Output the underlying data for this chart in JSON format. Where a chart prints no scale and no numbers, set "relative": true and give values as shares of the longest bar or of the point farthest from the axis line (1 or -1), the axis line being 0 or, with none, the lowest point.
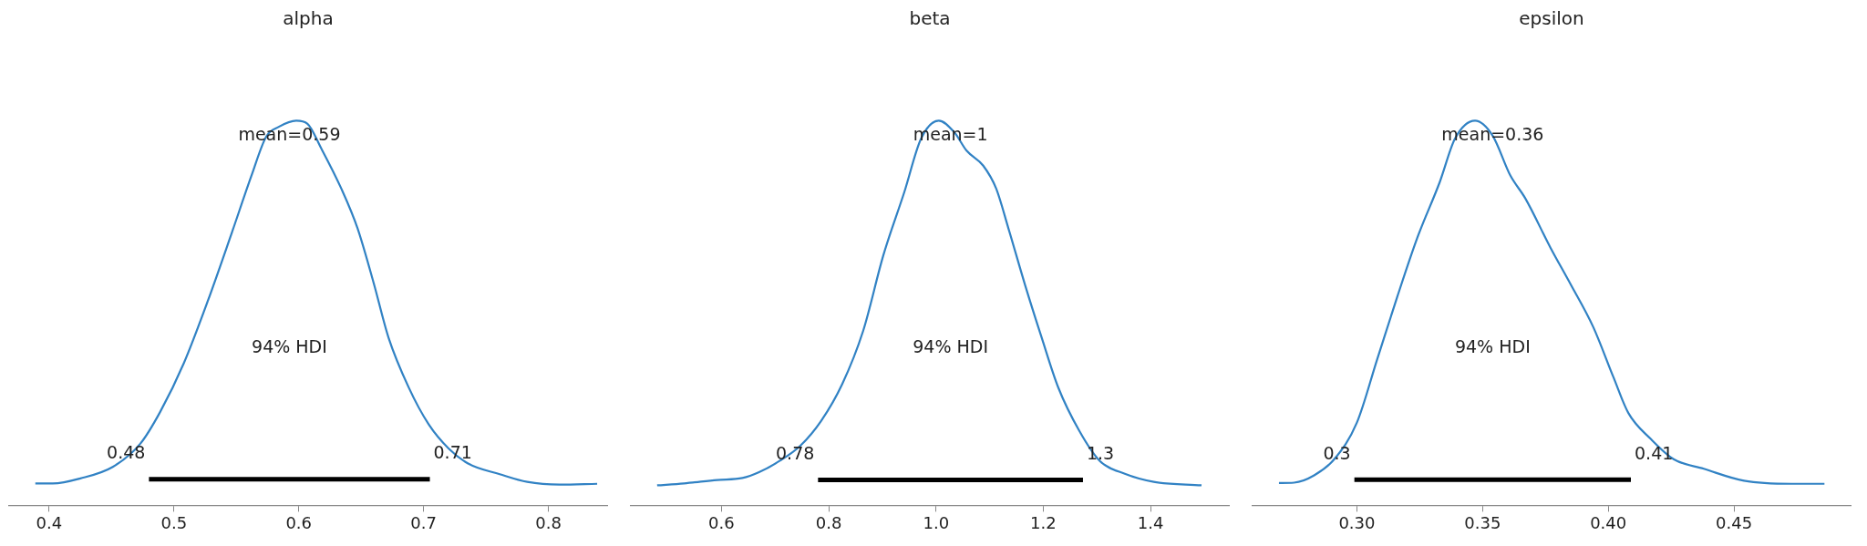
{
  "chart_data": [
    {
      "type": "line",
      "title": "alpha",
      "relative": true,
      "marker": "none",
      "line_style": "solid",
      "legend": false,
      "tick_labels": "x",
      "xlim": [
        0.368,
        0.847
      ],
      "xticks": [
        0.4,
        0.5,
        0.6,
        0.7,
        0.8
      ],
      "series": [
        {
          "color": "#3182c4",
          "x": [
            0.389,
            0.403,
            0.425,
            0.451,
            0.473,
            0.489,
            0.508,
            0.527,
            0.546,
            0.562,
            0.574,
            0.584,
            0.598,
            0.607,
            0.618,
            0.634,
            0.647,
            0.66,
            0.672,
            0.688,
            0.704,
            0.72,
            0.736,
            0.761,
            0.783,
            0.809,
            0.839
          ],
          "values": [
            0.057,
            0.057,
            0.07,
            0.1,
            0.16,
            0.243,
            0.37,
            0.53,
            0.705,
            0.856,
            0.959,
            0.984,
            1,
            0.992,
            0.928,
            0.824,
            0.721,
            0.578,
            0.435,
            0.307,
            0.211,
            0.148,
            0.108,
            0.081,
            0.061,
            0.054,
            0.056
          ]
        },
        {
          "color": "#000000",
          "x": [
            0.48,
            0.705
          ],
          "values": [
            0.068,
            0.068
          ]
        }
      ],
      "annotations": [
        "mean=0.59",
        "94% HDI",
        "0.48",
        "0.71"
      ]
    },
    {
      "type": "line",
      "title": "beta",
      "relative": true,
      "marker": "none",
      "line_style": "solid",
      "legend": false,
      "tick_labels": "x",
      "xlim": [
        0.431,
        1.546
      ],
      "xticks": [
        0.6,
        0.8,
        {
          "value": 1,
          "label": "1.0"
        },
        1.2,
        1.4
      ],
      "series": [
        {
          "color": "#3182c4",
          "x": [
            0.48,
            0.53,
            0.592,
            0.639,
            0.67,
            0.709,
            0.747,
            0.786,
            0.825,
            0.864,
            0.902,
            0.941,
            0.972,
            1.005,
            1.034,
            1.057,
            1.088,
            1.112,
            1.135,
            1.166,
            1.197,
            1.228,
            1.267,
            1.305,
            1.352,
            1.406,
            1.495
          ],
          "values": [
            0.052,
            0.057,
            0.066,
            0.071,
            0.086,
            0.116,
            0.155,
            0.22,
            0.315,
            0.453,
            0.651,
            0.815,
            0.953,
            1,
            0.97,
            0.922,
            0.883,
            0.824,
            0.72,
            0.573,
            0.436,
            0.306,
            0.194,
            0.116,
            0.082,
            0.061,
            0.052
          ]
        },
        {
          "color": "#000000",
          "x": [
            0.78,
            1.274
          ],
          "values": [
            0.066,
            0.066
          ]
        }
      ],
      "annotations": [
        "mean=1",
        "94% HDI",
        "0.78",
        "1.3"
      ]
    },
    {
      "type": "line",
      "title": "epsilon",
      "relative": true,
      "marker": "none",
      "line_style": "solid",
      "legend": false,
      "tick_labels": "x",
      "xlim": [
        0.2585,
        0.4964
      ],
      "xticks": [
        {
          "value": 0.3,
          "label": "0.30"
        },
        0.35,
        {
          "value": 0.4,
          "label": "0.40"
        },
        0.45
      ],
      "series": [
        {
          "color": "#3182c4",
          "x": [
            0.269,
            0.275,
            0.283,
            0.291,
            0.3,
            0.308,
            0.316,
            0.324,
            0.333,
            0.339,
            0.347,
            0.354,
            0.361,
            0.367,
            0.377,
            0.385,
            0.394,
            0.402,
            0.408,
            0.417,
            0.426,
            0.438,
            0.454,
            0.473,
            0.486
          ],
          "values": [
            0.058,
            0.059,
            0.078,
            0.12,
            0.215,
            0.378,
            0.541,
            0.695,
            0.841,
            0.953,
            1,
            0.961,
            0.858,
            0.798,
            0.67,
            0.575,
            0.464,
            0.334,
            0.24,
            0.172,
            0.12,
            0.095,
            0.064,
            0.056,
            0.056
          ]
        },
        {
          "color": "#000000",
          "x": [
            0.299,
            0.409
          ],
          "values": [
            0.067,
            0.067
          ]
        }
      ],
      "annotations": [
        "mean=0.36",
        "94% HDI",
        "0.3",
        "0.41"
      ]
    }
  ]
}
